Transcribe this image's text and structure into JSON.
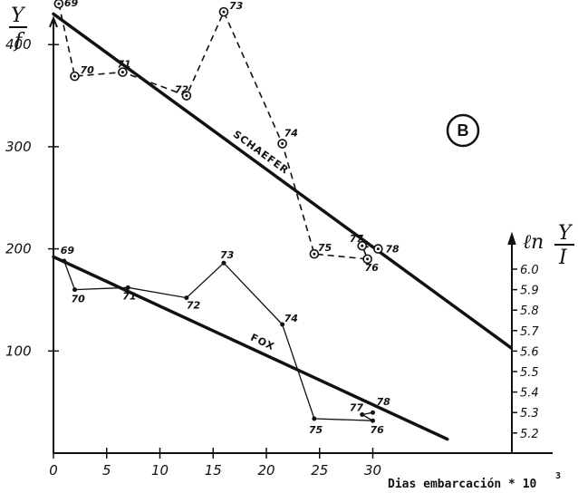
{
  "chart_data": {
    "type": "line",
    "badge": "B",
    "x_axis": {
      "label": "Dias embarcación * 10",
      "label_superscript": "3",
      "ticks": [
        "0",
        "5",
        "10",
        "15",
        "20",
        "25",
        "30"
      ],
      "tick_values": [
        0,
        5,
        10,
        15,
        20,
        25,
        30
      ],
      "range": [
        0,
        43
      ]
    },
    "y_axis_left": {
      "label_top": "Y",
      "label_bottom": "f",
      "ticks": [
        "100",
        "200",
        "300",
        "400"
      ],
      "tick_values": [
        100,
        200,
        300,
        400
      ],
      "range": [
        0,
        455
      ]
    },
    "y_axis_right": {
      "label_prefix": "ℓn",
      "label_top": "Y",
      "label_bottom": "I",
      "ticks": [
        "5.2",
        "5.3",
        "5.4",
        "5.5",
        "5.6",
        "5.7",
        "5.8",
        "5.9",
        "6.0"
      ],
      "tick_values": [
        5.2,
        5.3,
        5.4,
        5.5,
        5.6,
        5.7,
        5.8,
        5.9,
        6.0
      ],
      "range": [
        5.1,
        6.1
      ]
    },
    "series": [
      {
        "name": "SCHAEFER",
        "axis": "left",
        "style": "dashed",
        "marker": "circle-dot",
        "points": [
          {
            "label": "69",
            "x": 0.5,
            "y": 440
          },
          {
            "label": "70",
            "x": 2,
            "y": 369
          },
          {
            "label": "71",
            "x": 6.5,
            "y": 373
          },
          {
            "label": "72",
            "x": 12.5,
            "y": 350
          },
          {
            "label": "73",
            "x": 16,
            "y": 432
          },
          {
            "label": "74",
            "x": 21.5,
            "y": 303
          },
          {
            "label": "75",
            "x": 24.5,
            "y": 195
          },
          {
            "label": "76",
            "x": 29.5,
            "y": 190
          },
          {
            "label": "77",
            "x": 29,
            "y": 203
          },
          {
            "label": "78",
            "x": 30.5,
            "y": 200
          }
        ],
        "fit": {
          "x": [
            0,
            43
          ],
          "y": [
            430,
            103
          ]
        }
      },
      {
        "name": "FOX",
        "axis": "right",
        "style": "solid",
        "marker": "dot",
        "points": [
          {
            "label": "69",
            "x": 1,
            "y": 6.04
          },
          {
            "label": "70",
            "x": 2,
            "y": 5.9
          },
          {
            "label": "71",
            "x": 7,
            "y": 5.91
          },
          {
            "label": "72",
            "x": 12.5,
            "y": 5.86
          },
          {
            "label": "73",
            "x": 16,
            "y": 6.03
          },
          {
            "label": "74",
            "x": 21.5,
            "y": 5.73
          },
          {
            "label": "75",
            "x": 24.5,
            "y": 5.27
          },
          {
            "label": "76",
            "x": 30,
            "y": 5.26
          },
          {
            "label": "77",
            "x": 29,
            "y": 5.29
          },
          {
            "label": "78",
            "x": 30,
            "y": 5.3
          }
        ],
        "fit": {
          "x": [
            0,
            37
          ],
          "y": [
            6.06,
            5.17
          ]
        }
      }
    ]
  }
}
